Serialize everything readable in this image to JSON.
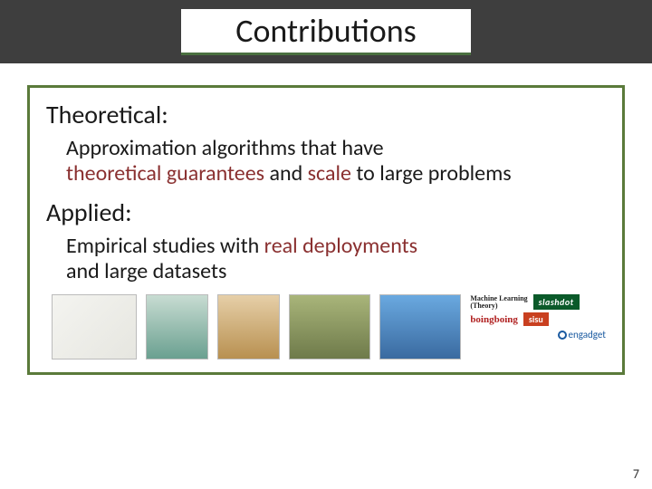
{
  "title": "Contributions",
  "theoretical": {
    "heading": "Theoretical:",
    "pre1": "Approximation algorithms that have",
    "hl1": "theoretical guarantees",
    "mid1": " and ",
    "hl2": "scale",
    "post1": " to large problems"
  },
  "applied": {
    "heading": "Applied:",
    "pre1": "Empirical studies with ",
    "hl1": "real deployments",
    "line2": "and large datasets"
  },
  "logos": {
    "ml_line1": "Machine Learning",
    "ml_line2": "(Theory)",
    "slashdot": "slashdot",
    "boing": "boingboing",
    "sisu": "sisu",
    "engadget": "engadget"
  },
  "page_number": "7",
  "colors": {
    "title_bar_bg": "#3e3e3e",
    "box_border": "#5a7a3a",
    "highlight": "#8a3030"
  }
}
